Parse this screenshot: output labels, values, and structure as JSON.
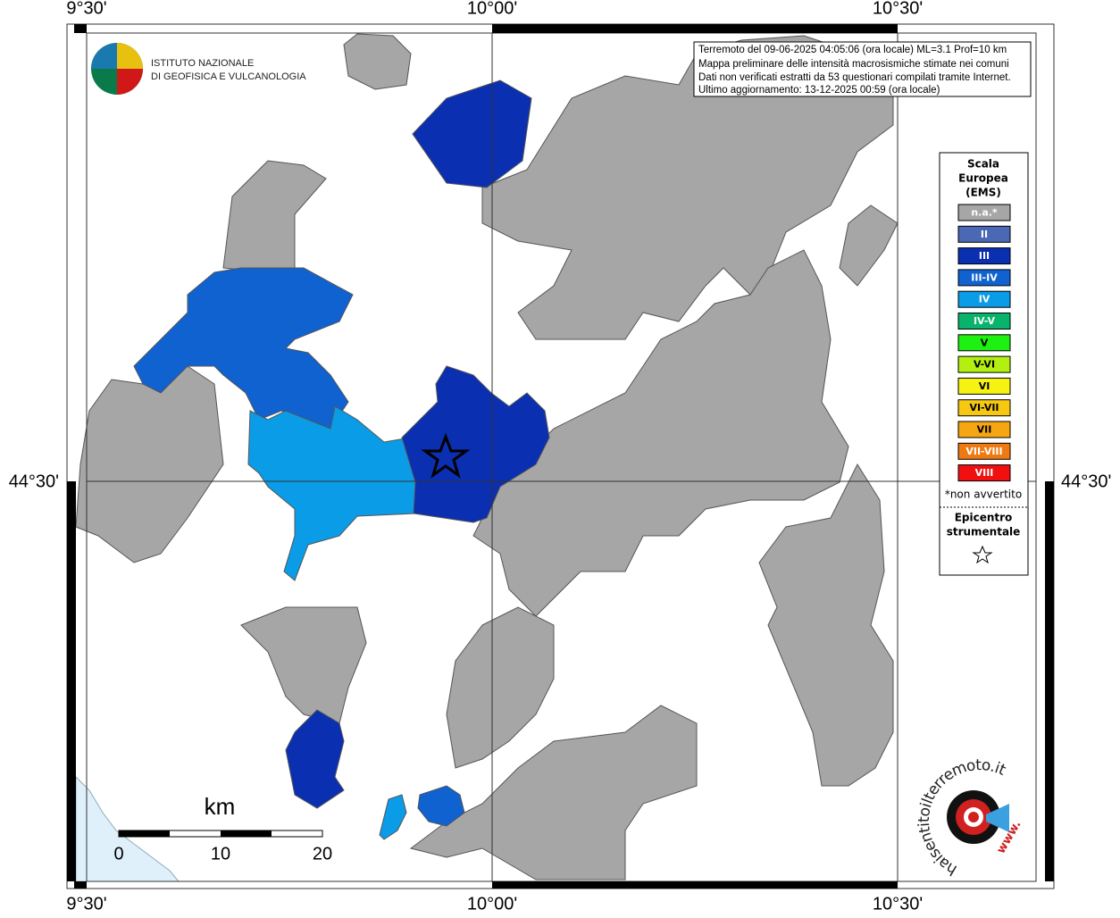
{
  "info_box": {
    "lines": [
      "Terremoto del 09-06-2025 04:05:06 (ora locale) ML=3.1 Prof=10 km",
      "Mappa preliminare delle intensità macrosismiche stimate nei comuni",
      "Dati non verificati estratti da 53 questionari compilati tramite Internet.",
      "Ultimo aggiornamento: 13-12-2025 00:59 (ora locale)"
    ]
  },
  "logo": {
    "lines": [
      "ISTITUTO NAZIONALE",
      "DI GEOFISICA E VULCANOLOGIA"
    ]
  },
  "frame_labels": {
    "top": [
      "9°30'",
      "10°00'",
      "10°30'"
    ],
    "bottom": [
      "9°30'",
      "10°00'",
      "10°30'"
    ],
    "left": "44°30'",
    "right": "44°30'"
  },
  "legend": {
    "title": [
      "Scala",
      "Europea",
      "(EMS)"
    ],
    "items": [
      {
        "label": "n.a.*",
        "color": "#a6a6a6"
      },
      {
        "label": "II",
        "color": "#4a68b4"
      },
      {
        "label": "III",
        "color": "#0a2fb0"
      },
      {
        "label": "III-IV",
        "color": "#0f62d0"
      },
      {
        "label": "IV",
        "color": "#0a9ce6"
      },
      {
        "label": "IV-V",
        "color": "#08b46b"
      },
      {
        "label": "V",
        "color": "#1ef012"
      },
      {
        "label": "V-VI",
        "color": "#b4ef12"
      },
      {
        "label": "VI",
        "color": "#f6f312"
      },
      {
        "label": "VI-VII",
        "color": "#f6c812"
      },
      {
        "label": "VII",
        "color": "#f6a612"
      },
      {
        "label": "VII-VIII",
        "color": "#f07a12"
      },
      {
        "label": "VIII",
        "color": "#f01010"
      }
    ],
    "note": "*non avvertito",
    "epicenter": [
      "Epicentro",
      "strumentale"
    ]
  },
  "scale_bar": {
    "unit": "km",
    "labels": [
      "0",
      "10",
      "20"
    ]
  },
  "site_logo": {
    "text": "haisentitoilterremoto.it",
    "prefix": "www."
  }
}
